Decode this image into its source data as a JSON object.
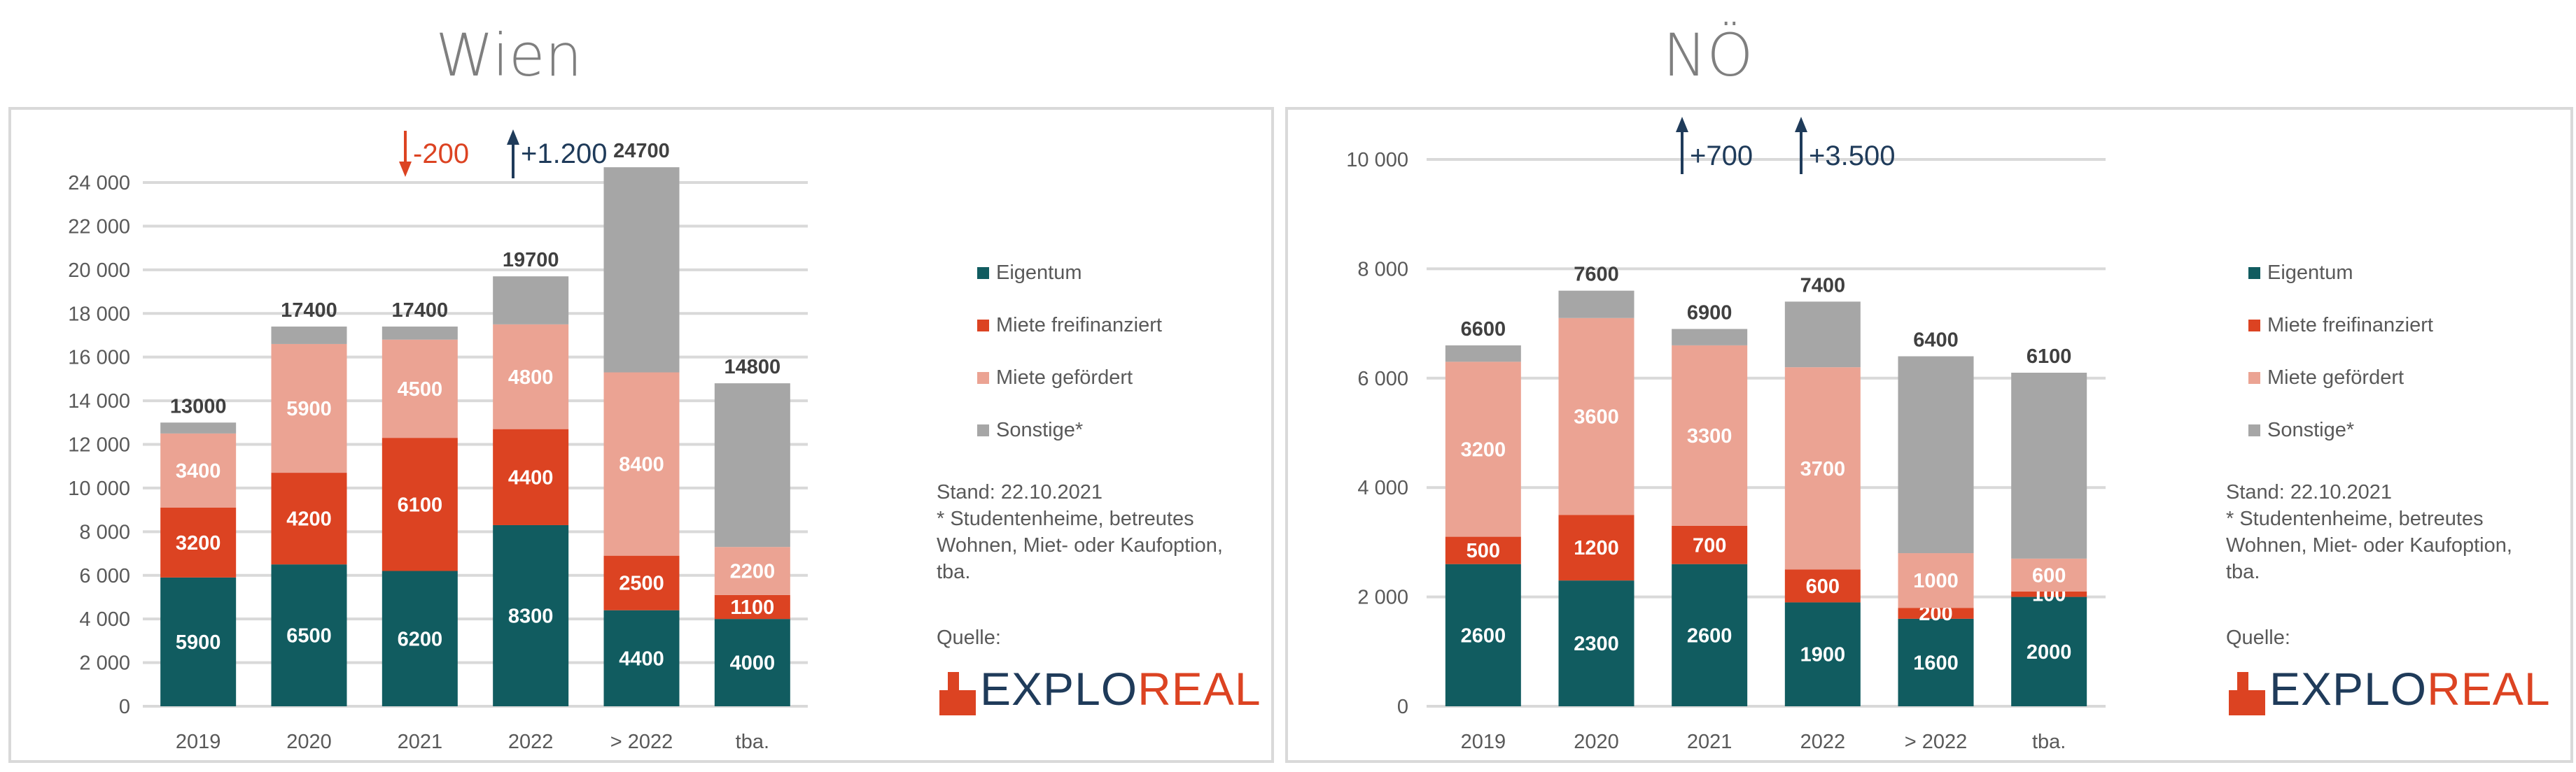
{
  "colors": {
    "Eigentum": "#115c60",
    "Miete freifinanziert": "#dc4322",
    "Miete gefördert": "#eba393",
    "Sonstige*": "#a6a6a6",
    "arrow_up": "#1f3b5a",
    "arrow_down": "#dc4322"
  },
  "notes": {
    "stand": "Stand: 22.10.2021",
    "footnote": "* Studentenheime, betreutes Wohnen, Miet- oder Kaufoption, tba.",
    "quelle": "Quelle:"
  },
  "logo": {
    "part1": "EXPLO",
    "part2": "REAL"
  },
  "chart_data": [
    {
      "type": "bar",
      "stacked": true,
      "title": "Wien",
      "categories": [
        "2019",
        "2020",
        "2021",
        "2022",
        "> 2022",
        "tba."
      ],
      "series": [
        {
          "name": "Eigentum",
          "values": [
            5900,
            6500,
            6200,
            8300,
            4400,
            4000
          ]
        },
        {
          "name": "Miete freifinanziert",
          "values": [
            3200,
            4200,
            6100,
            4400,
            2500,
            1100
          ]
        },
        {
          "name": "Miete gefördert",
          "values": [
            3400,
            5900,
            4500,
            4800,
            8400,
            2200
          ]
        },
        {
          "name": "Sonstige*",
          "values": [
            500,
            800,
            600,
            2200,
            9400,
            7500
          ]
        }
      ],
      "totals": [
        13000,
        17400,
        17400,
        19700,
        24700,
        14800
      ],
      "yticks": [
        "0",
        "2 000",
        "4 000",
        "6 000",
        "8 000",
        "10 000",
        "12 000",
        "14 000",
        "16 000",
        "18 000",
        "20 000",
        "22 000",
        "24 000"
      ],
      "ylim": [
        0,
        24000
      ],
      "ystep": 2000,
      "grid": true,
      "legend": "right",
      "annotations": [
        {
          "direction": "down",
          "text": "-200"
        },
        {
          "direction": "up",
          "text": "+1.200"
        }
      ]
    },
    {
      "type": "bar",
      "stacked": true,
      "title": "NÖ",
      "categories": [
        "2019",
        "2020",
        "2021",
        "2022",
        "> 2022",
        "tba."
      ],
      "series": [
        {
          "name": "Eigentum",
          "values": [
            2600,
            2300,
            2600,
            1900,
            1600,
            2000
          ]
        },
        {
          "name": "Miete freifinanziert",
          "values": [
            500,
            1200,
            700,
            600,
            200,
            100
          ]
        },
        {
          "name": "Miete gefördert",
          "values": [
            3200,
            3600,
            3300,
            3700,
            1000,
            600
          ]
        },
        {
          "name": "Sonstige*",
          "values": [
            300,
            500,
            300,
            1200,
            3600,
            3400
          ]
        }
      ],
      "totals": [
        6600,
        7600,
        6900,
        7400,
        6400,
        6100
      ],
      "yticks": [
        "0",
        "2 000",
        "4 000",
        "6 000",
        "8 000",
        "10 000"
      ],
      "ylim": [
        0,
        10000
      ],
      "ystep": 2000,
      "grid": true,
      "legend": "right",
      "annotations": [
        {
          "direction": "up",
          "text": "+700"
        },
        {
          "direction": "up",
          "text": "+3.500"
        }
      ]
    }
  ]
}
